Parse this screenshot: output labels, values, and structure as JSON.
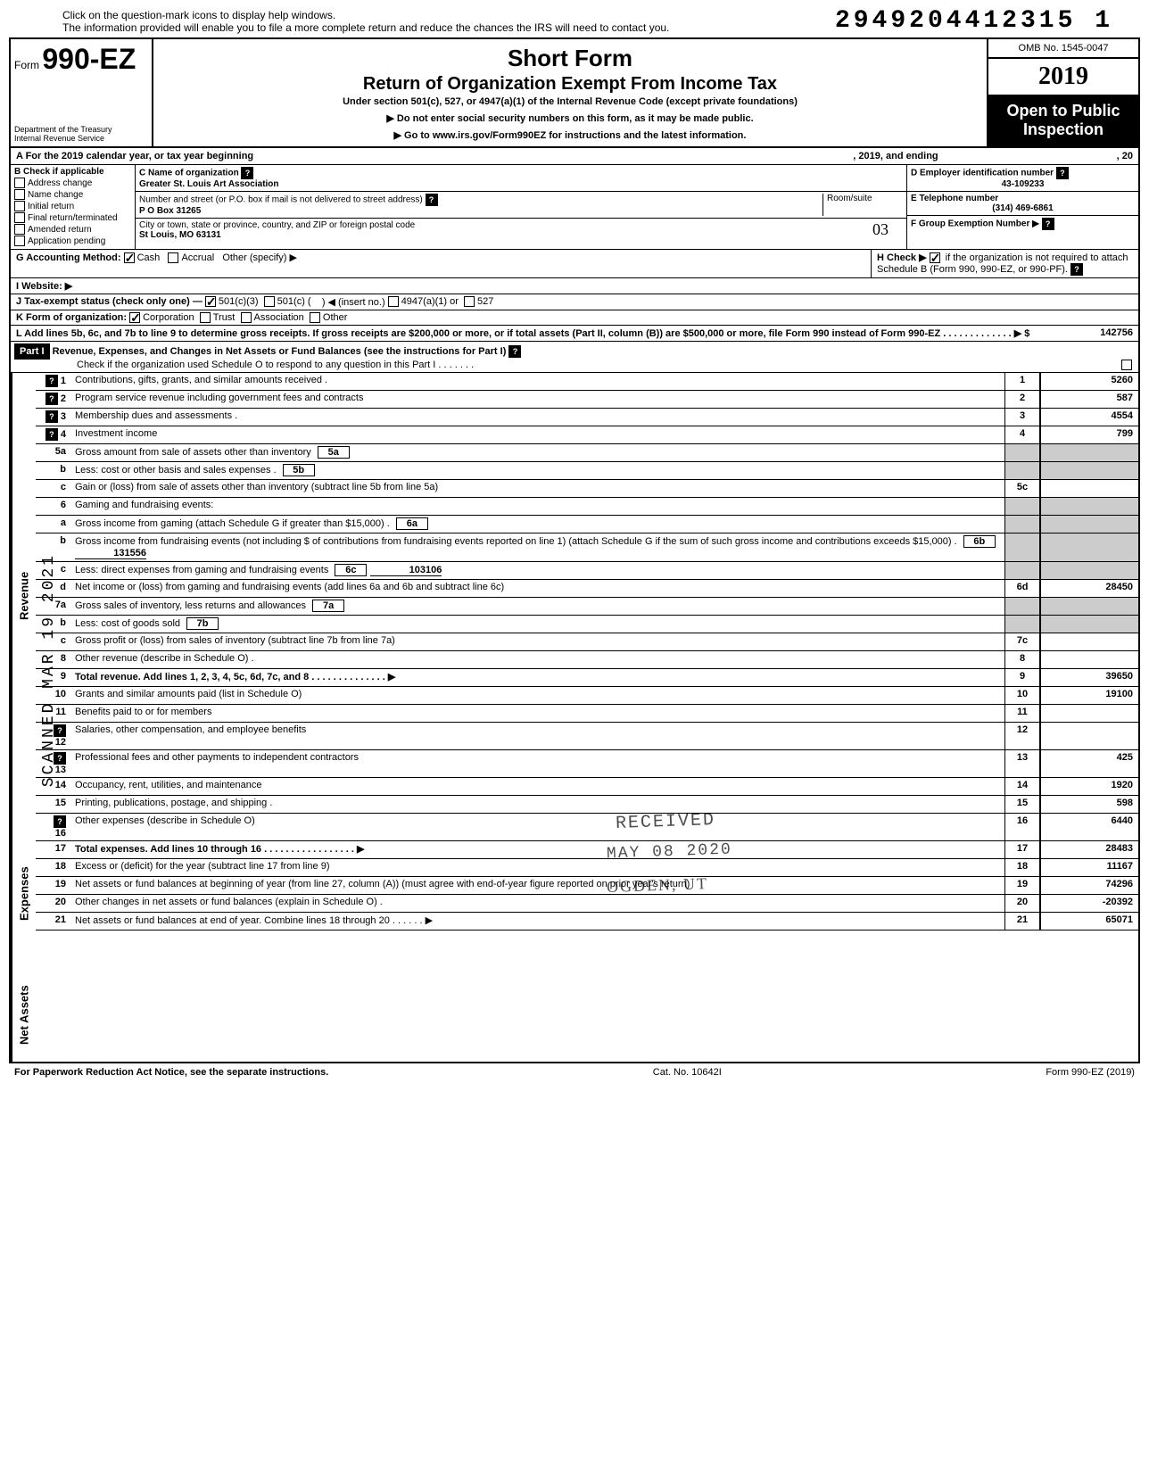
{
  "top_note_1": "Click on the question-mark icons to display help windows.",
  "top_note_2": "The information provided will enable you to file a more complete return and reduce the chances the IRS will need to contact you.",
  "dln": "2949204412315  1",
  "header": {
    "form_label": "Form",
    "form_number": "990-EZ",
    "dept": "Department of the Treasury\nInternal Revenue Service",
    "title": "Short Form",
    "subtitle": "Return of Organization Exempt From Income Tax",
    "under": "Under section 501(c), 527, or 4947(a)(1) of the Internal Revenue Code (except private foundations)",
    "warn": "▶ Do not enter social security numbers on this form, as it may be made public.",
    "goto": "▶ Go to www.irs.gov/Form990EZ for instructions and the latest information.",
    "omb": "OMB No. 1545-0047",
    "year": "2019",
    "open": "Open to Public Inspection"
  },
  "line_a": {
    "label": "A For the 2019 calendar year, or tax year beginning",
    "mid": ", 2019, and ending",
    "end": ", 20"
  },
  "block_b": {
    "label": "B Check if applicable",
    "items": [
      "Address change",
      "Name change",
      "Initial return",
      "Final return/terminated",
      "Amended return",
      "Application pending"
    ]
  },
  "block_c": {
    "c_label": "C Name of organization",
    "c_val": "Greater St. Louis Art Association",
    "street_label": "Number and street (or P.O. box if mail is not delivered to street address)",
    "room_label": "Room/suite",
    "street_val": "P O Box 31265",
    "city_label": "City or town, state or province, country, and ZIP or foreign postal code",
    "city_val": "St Louis, MO 63131",
    "room_hand": "03"
  },
  "block_d": {
    "label": "D Employer identification number",
    "val": "43-109233"
  },
  "block_e": {
    "label": "E Telephone number",
    "val": "(314) 469-6861"
  },
  "block_f": {
    "label": "F Group Exemption Number ▶"
  },
  "line_g": "G Accounting Method:",
  "g_cash": "Cash",
  "g_accrual": "Accrual",
  "g_other": "Other (specify) ▶",
  "line_h": "H Check ▶",
  "line_h2": "if the organization is not required to attach Schedule B (Form 990, 990-EZ, or 990-PF).",
  "line_i": "I  Website: ▶",
  "line_j": "J Tax-exempt status (check only one) —",
  "j_opts": [
    "501(c)(3)",
    "501(c) (",
    "4947(a)(1) or",
    "527"
  ],
  "j_insert": ") ◀ (insert no.)",
  "line_k": "K Form of organization:",
  "k_opts": [
    "Corporation",
    "Trust",
    "Association",
    "Other"
  ],
  "line_l": "L Add lines 5b, 6c, and 7b to line 9 to determine gross receipts. If gross receipts are $200,000 or more, or if total assets (Part II, column (B)) are $500,000 or more, file Form 990 instead of Form 990-EZ .  .  .  .  .  .  .  .  .  .  .  .  .  ▶  $",
  "l_val": "142756",
  "part1": {
    "label": "Part I",
    "title": "Revenue, Expenses, and Changes in Net Assets or Fund Balances (see the instructions for Part I)",
    "check": "Check if the organization used Schedule O to respond to any question in this Part I .  .  .  .  .  .  ."
  },
  "side_labels": {
    "rev": "Revenue",
    "exp": "Expenses",
    "net": "Net Assets"
  },
  "lines": {
    "1": {
      "n": "1",
      "t": "Contributions, gifts, grants, and similar amounts received .",
      "box": "1",
      "amt": "5260"
    },
    "2": {
      "n": "2",
      "t": "Program service revenue including government fees and contracts",
      "box": "2",
      "amt": "587"
    },
    "3": {
      "n": "3",
      "t": "Membership dues and assessments .",
      "box": "3",
      "amt": "4554"
    },
    "4": {
      "n": "4",
      "t": "Investment income",
      "box": "4",
      "amt": "799"
    },
    "5a": {
      "n": "5a",
      "t": "Gross amount from sale of assets other than inventory",
      "ibox": "5a"
    },
    "5b": {
      "n": "b",
      "t": "Less: cost or other basis and sales expenses .",
      "ibox": "5b"
    },
    "5c": {
      "n": "c",
      "t": "Gain or (loss) from sale of assets other than inventory (subtract line 5b from line 5a)",
      "box": "5c",
      "amt": ""
    },
    "6": {
      "n": "6",
      "t": "Gaming and fundraising events:"
    },
    "6a": {
      "n": "a",
      "t": "Gross income from gaming (attach Schedule G if greater than $15,000) .",
      "ibox": "6a"
    },
    "6b": {
      "n": "b",
      "t": "Gross income from fundraising events (not including  $                            of contributions from fundraising events reported on line 1) (attach Schedule G if the sum of such gross income and contributions exceeds $15,000) .",
      "ibox": "6b",
      "iamt": "131556"
    },
    "6c": {
      "n": "c",
      "t": "Less: direct expenses from gaming and fundraising events",
      "ibox": "6c",
      "iamt": "103106"
    },
    "6d": {
      "n": "d",
      "t": "Net income or (loss) from gaming and fundraising events (add lines 6a and 6b and subtract line 6c)",
      "box": "6d",
      "amt": "28450"
    },
    "7a": {
      "n": "7a",
      "t": "Gross sales of inventory, less returns and allowances",
      "ibox": "7a"
    },
    "7b": {
      "n": "b",
      "t": "Less: cost of goods sold",
      "ibox": "7b"
    },
    "7c": {
      "n": "c",
      "t": "Gross profit or (loss) from sales of inventory (subtract line 7b from line 7a)",
      "box": "7c",
      "amt": ""
    },
    "8": {
      "n": "8",
      "t": "Other revenue (describe in Schedule O) .",
      "box": "8",
      "amt": ""
    },
    "9": {
      "n": "9",
      "t": "Total revenue. Add lines 1, 2, 3, 4, 5c, 6d, 7c, and 8   .  .  .  .  .  .  .  .  .  .  .  .  .  .  ▶",
      "box": "9",
      "amt": "39650",
      "bold": true
    },
    "10": {
      "n": "10",
      "t": "Grants and similar amounts paid (list in Schedule O)",
      "box": "10",
      "amt": "19100"
    },
    "11": {
      "n": "11",
      "t": "Benefits paid to or for members",
      "box": "11",
      "amt": ""
    },
    "12": {
      "n": "12",
      "t": "Salaries, other compensation, and employee benefits",
      "box": "12",
      "amt": ""
    },
    "13": {
      "n": "13",
      "t": "Professional fees and other payments to independent contractors",
      "box": "13",
      "amt": "425"
    },
    "14": {
      "n": "14",
      "t": "Occupancy, rent, utilities, and maintenance",
      "box": "14",
      "amt": "1920"
    },
    "15": {
      "n": "15",
      "t": "Printing, publications, postage, and shipping .",
      "box": "15",
      "amt": "598"
    },
    "16": {
      "n": "16",
      "t": "Other expenses (describe in Schedule O)",
      "box": "16",
      "amt": "6440"
    },
    "17": {
      "n": "17",
      "t": "Total expenses. Add lines 10 through 16   .  .  .  .  .  .  .  .  .  .  .  .  .  .  .  .  .  ▶",
      "box": "17",
      "amt": "28483",
      "bold": true
    },
    "18": {
      "n": "18",
      "t": "Excess or (deficit) for the year (subtract line 17 from line 9)",
      "box": "18",
      "amt": "11167"
    },
    "19": {
      "n": "19",
      "t": "Net assets or fund balances at beginning of year (from line 27, column (A)) (must agree with end-of-year figure reported on prior year's return)",
      "box": "19",
      "amt": "74296"
    },
    "20": {
      "n": "20",
      "t": "Other changes in net assets or fund balances (explain in Schedule O) .",
      "box": "20",
      "amt": "-20392"
    },
    "21": {
      "n": "21",
      "t": "Net assets or fund balances at end of year. Combine lines 18 through 20    .  .  .  .  .  .  ▶",
      "box": "21",
      "amt": "65071"
    }
  },
  "footer": {
    "left": "For Paperwork Reduction Act Notice, see the separate instructions.",
    "mid": "Cat. No. 10642I",
    "right": "Form 990-EZ (2019)"
  },
  "stamps": {
    "received": "RECEIVED",
    "date": "MAY 08 2020",
    "ogden": "OGDEN, UT",
    "scanned": "SCANNED MAR 19 2021"
  }
}
